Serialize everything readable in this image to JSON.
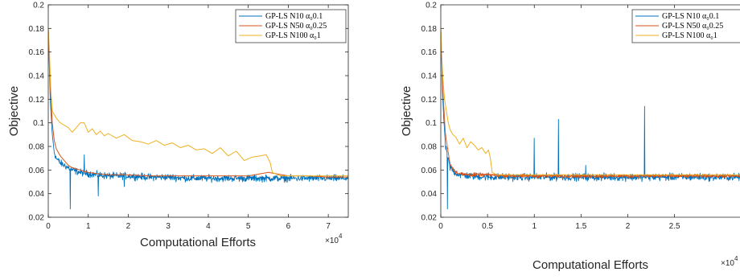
{
  "chart_data": [
    {
      "type": "line",
      "xlabel": "Computational Efforts",
      "ylabel": "Objective",
      "x_multiplier_label": "×10",
      "x_multiplier_exp": "4",
      "xlim": [
        0,
        75000
      ],
      "ylim": [
        0.02,
        0.2
      ],
      "xticks": [
        0,
        10000,
        20000,
        30000,
        40000,
        50000,
        60000,
        70000
      ],
      "xtick_labels": [
        "0",
        "1",
        "2",
        "3",
        "4",
        "5",
        "6",
        "7"
      ],
      "yticks": [
        0.02,
        0.04,
        0.06,
        0.08,
        0.1,
        0.12,
        0.14,
        0.16,
        0.18,
        0.2
      ],
      "ytick_labels": [
        "0.02",
        "0.04",
        "0.06",
        "0.08",
        "0.1",
        "0.12",
        "0.14",
        "0.16",
        "0.18",
        "0.2"
      ],
      "grid": false,
      "legend_position": "top-right",
      "series": [
        {
          "name": "GP-LS N10 α₀0.1",
          "color": "#0072BD",
          "noisy": true,
          "x": [
            0,
            500,
            1000,
            1500,
            2000,
            3000,
            4000,
            5000,
            6000,
            7000,
            8000,
            10000,
            12000,
            15000,
            20000,
            25000,
            30000,
            35000,
            40000,
            45000,
            50000,
            55000,
            60000,
            65000,
            70000,
            75000
          ],
          "y": [
            0.18,
            0.12,
            0.09,
            0.075,
            0.07,
            0.066,
            0.064,
            0.062,
            0.06,
            0.059,
            0.058,
            0.057,
            0.056,
            0.055,
            0.055,
            0.054,
            0.054,
            0.053,
            0.053,
            0.053,
            0.053,
            0.053,
            0.053,
            0.053,
            0.053,
            0.053
          ],
          "spikes": [
            [
              5500,
              0.027
            ],
            [
              12500,
              0.038
            ],
            [
              9000,
              0.073
            ],
            [
              19000,
              0.046
            ]
          ]
        },
        {
          "name": "GP-LS N50 α₀0.25",
          "color": "#D95319",
          "noisy": false,
          "x": [
            0,
            500,
            1000,
            1500,
            2000,
            3000,
            4000,
            5000,
            6000,
            8000,
            10000,
            12000,
            15000,
            20000,
            25000,
            30000,
            35000,
            40000,
            45000,
            50000,
            55000,
            60000,
            65000,
            70000,
            75000
          ],
          "y": [
            0.18,
            0.13,
            0.1,
            0.085,
            0.078,
            0.072,
            0.068,
            0.064,
            0.062,
            0.06,
            0.058,
            0.057,
            0.056,
            0.056,
            0.055,
            0.055,
            0.055,
            0.055,
            0.055,
            0.055,
            0.058,
            0.055,
            0.055,
            0.054,
            0.054
          ]
        },
        {
          "name": "GP-LS N100 α₀1",
          "color": "#EDB120",
          "noisy": false,
          "x": [
            0,
            300,
            600,
            1000,
            2000,
            3000,
            4000,
            5000,
            6000,
            7000,
            8000,
            9000,
            10000,
            11000,
            12000,
            13000,
            14000,
            15000,
            17000,
            19000,
            21000,
            23000,
            25000,
            27000,
            29000,
            31000,
            33000,
            35000,
            37000,
            39000,
            41000,
            43000,
            45000,
            47000,
            49000,
            51000,
            53000,
            54500,
            55500,
            56000,
            58000,
            60000,
            62000,
            65000,
            70000,
            75000
          ],
          "y": [
            0.18,
            0.16,
            0.13,
            0.11,
            0.104,
            0.1,
            0.098,
            0.096,
            0.092,
            0.096,
            0.1,
            0.1,
            0.092,
            0.095,
            0.09,
            0.093,
            0.089,
            0.091,
            0.087,
            0.09,
            0.085,
            0.084,
            0.082,
            0.085,
            0.081,
            0.083,
            0.079,
            0.081,
            0.077,
            0.078,
            0.074,
            0.079,
            0.072,
            0.076,
            0.068,
            0.071,
            0.072,
            0.073,
            0.066,
            0.058,
            0.055,
            0.055,
            0.055,
            0.055,
            0.055,
            0.055
          ]
        }
      ]
    },
    {
      "type": "line",
      "xlabel": "Computational Efforts",
      "ylabel": "Objective",
      "x_multiplier_label": "×10",
      "x_multiplier_exp": "4",
      "xlim": [
        0,
        32000
      ],
      "ylim": [
        0.02,
        0.2
      ],
      "xticks": [
        0,
        5000,
        10000,
        15000,
        20000,
        25000
      ],
      "xtick_labels": [
        "0",
        "0.5",
        "1",
        "1.5",
        "2",
        "2.5"
      ],
      "yticks": [
        0.02,
        0.04,
        0.06,
        0.08,
        0.1,
        0.12,
        0.14,
        0.16,
        0.18,
        0.2
      ],
      "ytick_labels": [
        "0.02",
        "0.04",
        "0.06",
        "0.08",
        "0.1",
        "0.12",
        "0.14",
        "0.16",
        "0.18",
        "0.2"
      ],
      "grid": false,
      "legend_position": "top-right",
      "series": [
        {
          "name": "GP-LS N10 α₀0.1",
          "color": "#0072BD",
          "noisy": true,
          "x": [
            0,
            200,
            500,
            1000,
            1500,
            2000,
            3000,
            5000,
            8000,
            12000,
            16000,
            20000,
            24000,
            28000,
            32000
          ],
          "y": [
            0.18,
            0.12,
            0.08,
            0.062,
            0.058,
            0.056,
            0.055,
            0.054,
            0.054,
            0.054,
            0.054,
            0.054,
            0.054,
            0.054,
            0.054
          ],
          "spikes": [
            [
              10000,
              0.087
            ],
            [
              12600,
              0.103
            ],
            [
              21800,
              0.114
            ],
            [
              15500,
              0.064
            ],
            [
              700,
              0.027
            ]
          ]
        },
        {
          "name": "GP-LS N50 α₀0.25",
          "color": "#D95319",
          "noisy": true,
          "x": [
            0,
            200,
            500,
            1000,
            1500,
            2000,
            3000,
            5000,
            8000,
            12000,
            16000,
            20000,
            24000,
            28000,
            32000
          ],
          "y": [
            0.18,
            0.13,
            0.09,
            0.065,
            0.059,
            0.057,
            0.056,
            0.056,
            0.055,
            0.055,
            0.055,
            0.055,
            0.055,
            0.055,
            0.055
          ]
        },
        {
          "name": "GP-LS N100 α₀1",
          "color": "#EDB120",
          "noisy": false,
          "x": [
            0,
            200,
            400,
            600,
            800,
            1000,
            1300,
            1600,
            2000,
            2400,
            2800,
            3200,
            3600,
            4000,
            4400,
            4800,
            5100,
            5300,
            5500,
            6000,
            8000,
            12000,
            16000,
            20000,
            24000,
            28000,
            32000
          ],
          "y": [
            0.18,
            0.14,
            0.12,
            0.11,
            0.1,
            0.094,
            0.09,
            0.088,
            0.082,
            0.087,
            0.079,
            0.084,
            0.081,
            0.077,
            0.079,
            0.074,
            0.077,
            0.07,
            0.058,
            0.056,
            0.056,
            0.056,
            0.056,
            0.056,
            0.056,
            0.056,
            0.056
          ]
        }
      ]
    }
  ]
}
